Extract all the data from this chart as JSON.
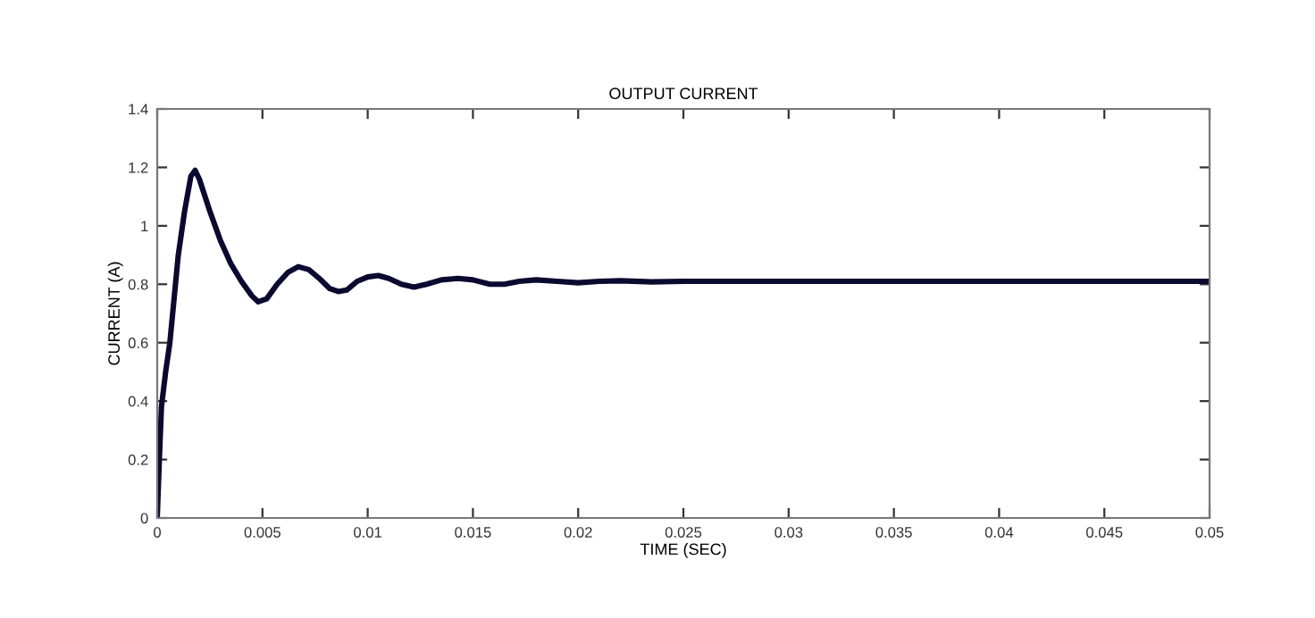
{
  "chart_data": {
    "type": "line",
    "title": "OUTPUT CURRENT",
    "xlabel": "TIME (SEC)",
    "ylabel": "CURRENT (A)",
    "x": [
      0,
      0.0001,
      0.0002,
      0.0004,
      0.0006,
      0.0008,
      0.001,
      0.0013,
      0.0016,
      0.0018,
      0.002,
      0.0025,
      0.003,
      0.0035,
      0.004,
      0.0045,
      0.0048,
      0.0052,
      0.0057,
      0.0062,
      0.0067,
      0.0072,
      0.0077,
      0.0082,
      0.0086,
      0.009,
      0.0095,
      0.01,
      0.0105,
      0.011,
      0.0116,
      0.0122,
      0.0128,
      0.0135,
      0.0143,
      0.015,
      0.0158,
      0.0165,
      0.0172,
      0.018,
      0.019,
      0.02,
      0.021,
      0.022,
      0.0235,
      0.025,
      0.03,
      0.035,
      0.04,
      0.045,
      0.05
    ],
    "series": [
      {
        "color": "#0a0a30",
        "values": [
          0,
          0.2,
          0.38,
          0.5,
          0.6,
          0.75,
          0.9,
          1.05,
          1.17,
          1.19,
          1.16,
          1.05,
          0.95,
          0.87,
          0.81,
          0.76,
          0.74,
          0.75,
          0.8,
          0.84,
          0.86,
          0.85,
          0.82,
          0.785,
          0.775,
          0.78,
          0.81,
          0.825,
          0.83,
          0.82,
          0.8,
          0.79,
          0.8,
          0.815,
          0.82,
          0.815,
          0.8,
          0.8,
          0.81,
          0.815,
          0.81,
          0.805,
          0.81,
          0.812,
          0.808,
          0.81,
          0.81,
          0.81,
          0.81,
          0.81,
          0.81
        ]
      }
    ],
    "xlim": [
      0,
      0.05
    ],
    "ylim": [
      0,
      1.4
    ],
    "xticks": [
      0,
      0.005,
      0.01,
      0.015,
      0.02,
      0.025,
      0.03,
      0.035,
      0.04,
      0.045,
      0.05
    ],
    "yticks": [
      0,
      0.2,
      0.4,
      0.6,
      0.8,
      1,
      1.2,
      1.4
    ],
    "grid": false,
    "legend": false
  }
}
